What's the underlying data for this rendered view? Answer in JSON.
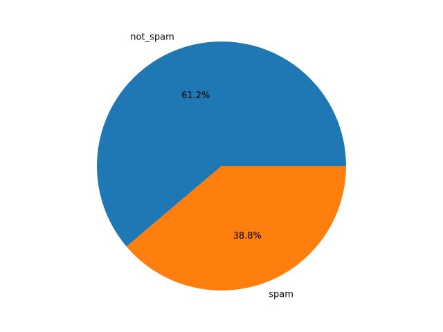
{
  "chart_data": {
    "type": "pie",
    "slices": [
      {
        "label": "not_spam",
        "percent_label": "61.2%",
        "value": 61.2,
        "color": "#1f77b4"
      },
      {
        "label": "spam",
        "percent_label": "38.8%",
        "value": 38.8,
        "color": "#ff7f0e"
      }
    ],
    "start_angle": "0 degrees (3 o'clock), counter-clockwise"
  }
}
